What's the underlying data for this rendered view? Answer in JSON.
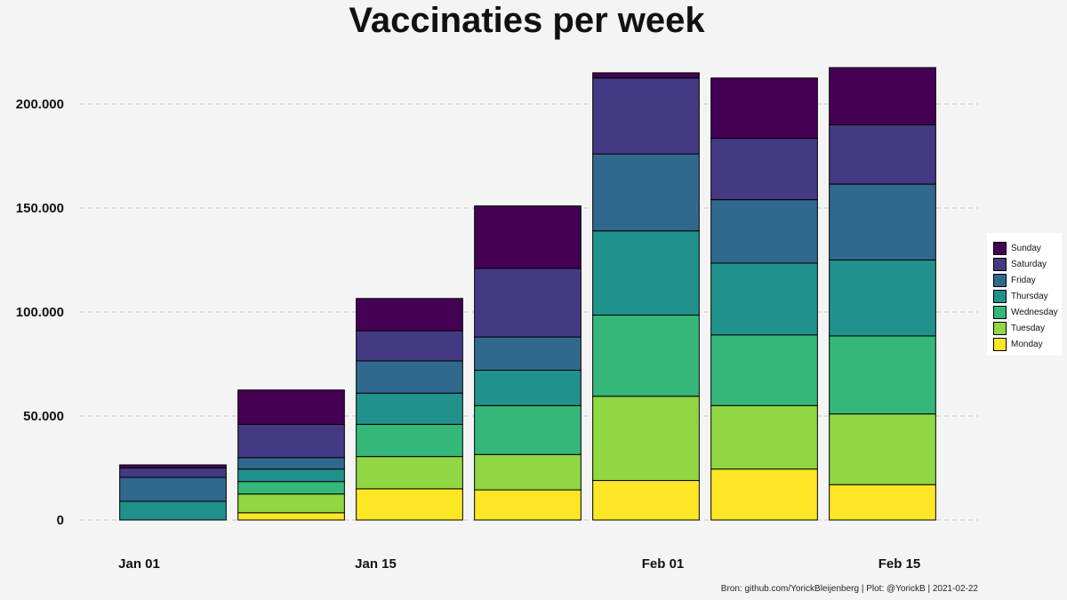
{
  "chart_data": {
    "type": "bar",
    "stacked": true,
    "title": "Vaccinaties per week",
    "xlabel": "",
    "ylabel": "",
    "ylim": [
      0,
      220000
    ],
    "yticks": [
      0,
      50000,
      100000,
      150000,
      200000
    ],
    "ytick_labels": [
      "0",
      "50.000",
      "100.000",
      "150.000",
      "200.000"
    ],
    "xticks": [
      {
        "date": "2021-01-01",
        "label": "Jan 01"
      },
      {
        "date": "2021-01-15",
        "label": "Jan 15"
      },
      {
        "date": "2021-02-01",
        "label": "Feb 01"
      },
      {
        "date": "2021-02-15",
        "label": "Feb 15"
      }
    ],
    "weeks": [
      "2021-01-03",
      "2021-01-10",
      "2021-01-17",
      "2021-01-24",
      "2021-01-31",
      "2021-02-07",
      "2021-02-14"
    ],
    "grid": "horizontal dashed",
    "legend_position": "right",
    "series": [
      {
        "name": "Monday",
        "color": "#fde725",
        "values": [
          0,
          3500,
          15000,
          14500,
          19000,
          24500,
          17000
        ]
      },
      {
        "name": "Tuesday",
        "color": "#90d743",
        "values": [
          0,
          9000,
          15500,
          17000,
          40500,
          30500,
          34000
        ]
      },
      {
        "name": "Wednesday",
        "color": "#35b779",
        "values": [
          0,
          6000,
          15500,
          23500,
          39000,
          34000,
          37500
        ]
      },
      {
        "name": "Thursday",
        "color": "#21918c",
        "values": [
          9000,
          6000,
          15000,
          17000,
          40500,
          34500,
          36500
        ]
      },
      {
        "name": "Friday",
        "color": "#31688e",
        "values": [
          11500,
          5500,
          15500,
          16000,
          37000,
          30500,
          36500
        ]
      },
      {
        "name": "Saturday",
        "color": "#443983",
        "values": [
          4500,
          16000,
          14500,
          33000,
          36500,
          29500,
          28500
        ]
      },
      {
        "name": "Sunday",
        "color": "#440154",
        "values": [
          1500,
          16500,
          15500,
          30000,
          2500,
          29000,
          27500
        ]
      }
    ]
  },
  "caption": "Bron: github.com/YorickBleijenberg | Plot: @YorickB  |  2021-02-22"
}
